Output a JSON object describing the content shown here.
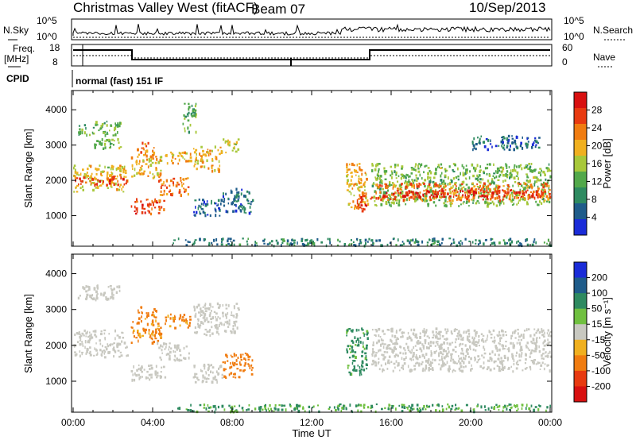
{
  "header": {
    "station": "Christmas Valley West (fitACF)",
    "beam": "Beam 07",
    "date": "10/Sep/2013"
  },
  "labels": {
    "nsky": "N.Sky",
    "nsky_ticks": [
      "10^5",
      "10^0"
    ],
    "nsearch": "N.Search",
    "freq": "Freq.",
    "freq_unit": "[MHz]",
    "freq_ticks": [
      "18",
      "8"
    ],
    "nave": "Nave",
    "nave_ticks": [
      "60",
      "0"
    ],
    "cpid": "CPID",
    "cpid_value": "normal (fast) 151 IF",
    "ylabel": "Slant Range [km]",
    "xlabel": "Time UT",
    "power_label": "Power [dB]",
    "velocity_label": "Velocity [m s⁻¹]"
  },
  "chart_data": [
    {
      "type": "heatmap",
      "name": "power",
      "xlabel": "Time UT",
      "ylabel": "Slant Range [km]",
      "x_ticks": [
        "00:00",
        "04:00",
        "08:00",
        "12:00",
        "16:00",
        "20:00",
        "00:00"
      ],
      "y_ticks": [
        1000,
        2000,
        3000,
        4000
      ],
      "xlim_hours": [
        0,
        24
      ],
      "ylim": [
        180,
        4500
      ],
      "colorbar": {
        "label": "Power [dB]",
        "ticks": [
          4,
          8,
          12,
          16,
          20,
          24,
          28
        ],
        "range": [
          0,
          32
        ],
        "colors": [
          "#1a2cd8",
          "#1f5c8a",
          "#2e8a60",
          "#52a84a",
          "#a8c83a",
          "#f0b020",
          "#f07c10",
          "#e83a10",
          "#d81010"
        ]
      },
      "bands": [
        {
          "t": [
            0.0,
            2.7
          ],
          "r": [
            1700,
            2450
          ],
          "v": 18
        },
        {
          "t": [
            0.0,
            2.7
          ],
          "r": [
            1900,
            2150
          ],
          "v": 27
        },
        {
          "t": [
            0.2,
            2.4
          ],
          "r": [
            3300,
            3700
          ],
          "v": 12
        },
        {
          "t": [
            1.0,
            2.5
          ],
          "r": [
            2900,
            3200
          ],
          "v": 14
        },
        {
          "t": [
            2.9,
            4.4
          ],
          "r": [
            2100,
            2700
          ],
          "v": 20
        },
        {
          "t": [
            2.9,
            4.6
          ],
          "r": [
            1050,
            1500
          ],
          "v": 25
        },
        {
          "t": [
            3.2,
            4.2
          ],
          "r": [
            2600,
            3100
          ],
          "v": 22
        },
        {
          "t": [
            4.2,
            5.8
          ],
          "r": [
            1600,
            2100
          ],
          "v": 24
        },
        {
          "t": [
            4.6,
            5.9
          ],
          "r": [
            2500,
            2900
          ],
          "v": 20
        },
        {
          "t": [
            5.5,
            6.2
          ],
          "r": [
            3400,
            4200
          ],
          "v": 12
        },
        {
          "t": [
            6.0,
            7.4
          ],
          "r": [
            2300,
            3000
          ],
          "v": 20
        },
        {
          "t": [
            7.4,
            8.3
          ],
          "r": [
            2800,
            3200
          ],
          "v": 18
        },
        {
          "t": [
            6.0,
            7.5
          ],
          "r": [
            1000,
            1500
          ],
          "v": 5
        },
        {
          "t": [
            7.5,
            9.0
          ],
          "r": [
            1100,
            1800
          ],
          "v": 6
        },
        {
          "t": [
            5.0,
            15.0
          ],
          "r": [
            180,
            380
          ],
          "v": 8
        },
        {
          "t": [
            13.7,
            14.8
          ],
          "r": [
            1200,
            2500
          ],
          "v": 20
        },
        {
          "t": [
            14.2,
            15.0
          ],
          "r": [
            1150,
            1600
          ],
          "v": 26
        },
        {
          "t": [
            15.0,
            24.0
          ],
          "r": [
            1300,
            2500
          ],
          "v": 14
        },
        {
          "t": [
            15.2,
            24.0
          ],
          "r": [
            1450,
            1950
          ],
          "v": 24
        },
        {
          "t": [
            15.5,
            24.0
          ],
          "r": [
            1550,
            1750
          ],
          "v": 29
        },
        {
          "t": [
            20.0,
            23.5
          ],
          "r": [
            2900,
            3300
          ],
          "v": 6
        },
        {
          "t": [
            15.0,
            24.0
          ],
          "r": [
            180,
            380
          ],
          "v": 8
        }
      ]
    },
    {
      "type": "heatmap",
      "name": "velocity",
      "xlabel": "Time UT",
      "ylabel": "Slant Range [km]",
      "x_ticks": [
        "00:00",
        "04:00",
        "08:00",
        "12:00",
        "16:00",
        "20:00",
        "00:00"
      ],
      "y_ticks": [
        1000,
        2000,
        3000,
        4000
      ],
      "xlim_hours": [
        0,
        24
      ],
      "ylim": [
        180,
        4500
      ],
      "colorbar": {
        "label": "Velocity [m s⁻¹]",
        "ticks": [
          200,
          100,
          50,
          15,
          -15,
          -50,
          -100,
          -200
        ],
        "colors": [
          "#1a2cd8",
          "#1f5c8a",
          "#2e8a60",
          "#70c040",
          "#c8c8c0",
          "#f0b020",
          "#f07c10",
          "#e83a10",
          "#d81010"
        ]
      },
      "bands": [
        {
          "t": [
            0.0,
            2.7
          ],
          "r": [
            1700,
            2450
          ],
          "v": 0
        },
        {
          "t": [
            0.2,
            2.4
          ],
          "r": [
            3300,
            3700
          ],
          "v": 0
        },
        {
          "t": [
            2.9,
            4.4
          ],
          "r": [
            2100,
            2700
          ],
          "v": -40
        },
        {
          "t": [
            2.9,
            4.6
          ],
          "r": [
            1050,
            1500
          ],
          "v": 0
        },
        {
          "t": [
            3.2,
            4.2
          ],
          "r": [
            2600,
            3100
          ],
          "v": -40
        },
        {
          "t": [
            4.2,
            5.8
          ],
          "r": [
            1600,
            2100
          ],
          "v": 0
        },
        {
          "t": [
            4.6,
            5.9
          ],
          "r": [
            2500,
            2900
          ],
          "v": -40
        },
        {
          "t": [
            6.0,
            8.3
          ],
          "r": [
            2300,
            3200
          ],
          "v": 0
        },
        {
          "t": [
            6.0,
            7.5
          ],
          "r": [
            1000,
            1500
          ],
          "v": 0
        },
        {
          "t": [
            7.5,
            9.0
          ],
          "r": [
            1100,
            1800
          ],
          "v": -60
        },
        {
          "t": [
            5.0,
            15.0
          ],
          "r": [
            180,
            380
          ],
          "v": 30
        },
        {
          "t": [
            13.7,
            14.8
          ],
          "r": [
            1200,
            2500
          ],
          "v": 40
        },
        {
          "t": [
            15.0,
            24.0
          ],
          "r": [
            1300,
            2500
          ],
          "v": 0
        },
        {
          "t": [
            15.0,
            24.0
          ],
          "r": [
            180,
            380
          ],
          "v": 30
        }
      ]
    }
  ]
}
